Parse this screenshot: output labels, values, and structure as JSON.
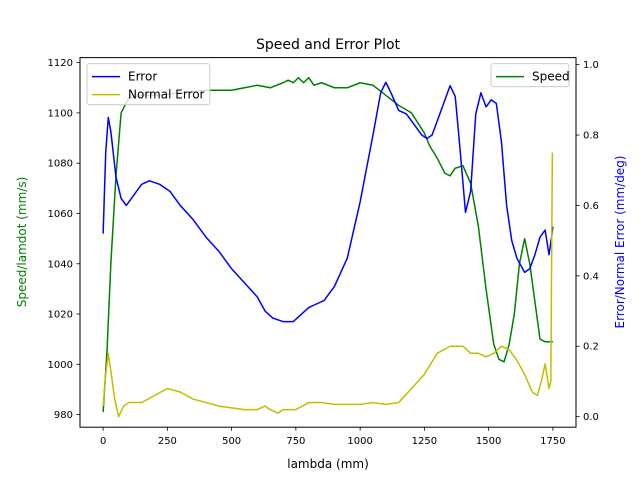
{
  "chart_data": {
    "type": "line",
    "title": "Speed and Error Plot",
    "xlabel": "lambda (mm)",
    "ylabel_left": "Speed/lamdot (mm/s)",
    "ylabel_right": "Error/Normal Error (mm/deg)",
    "xlim": [
      -90,
      1840
    ],
    "ylim_left": [
      975,
      1122
    ],
    "ylim_right": [
      -0.03,
      1.02
    ],
    "xticks": [
      0,
      250,
      500,
      750,
      1000,
      1250,
      1500,
      1750
    ],
    "yticks_left": [
      980,
      1000,
      1020,
      1040,
      1060,
      1080,
      1100,
      1120
    ],
    "yticks_right": [
      0.0,
      0.2,
      0.4,
      0.6,
      0.8,
      1.0
    ],
    "grid": false,
    "legend_left": {
      "placement": "top-left",
      "entries": [
        "Error",
        "Normal Error"
      ]
    },
    "legend_right": {
      "placement": "top-right",
      "entries": [
        "Speed"
      ]
    },
    "colors": {
      "speed": "#008000",
      "error": "#0000ff",
      "normal_error": "#bfbf00"
    },
    "series": [
      {
        "name": "Speed",
        "axis": "left",
        "color": "#008000",
        "x": [
          0,
          15,
          30,
          50,
          70,
          100,
          150,
          200,
          300,
          400,
          500,
          550,
          600,
          650,
          700,
          720,
          740,
          760,
          780,
          800,
          820,
          850,
          900,
          950,
          1000,
          1050,
          1100,
          1150,
          1200,
          1250,
          1270,
          1300,
          1330,
          1350,
          1370,
          1400,
          1430,
          1460,
          1490,
          1520,
          1540,
          1560,
          1580,
          1600,
          1620,
          1640,
          1660,
          1680,
          1700,
          1720,
          1740,
          1750
        ],
        "values": [
          981,
          1005,
          1040,
          1075,
          1100,
          1106,
          1107,
          1107,
          1108,
          1109,
          1109,
          1110,
          1111,
          1110,
          1112,
          1113,
          1112,
          1114,
          1112,
          1114,
          1111,
          1112,
          1110,
          1110,
          1112,
          1111,
          1107,
          1103,
          1100,
          1092,
          1087,
          1082,
          1076,
          1075,
          1078,
          1079,
          1072,
          1055,
          1030,
          1008,
          1002,
          1001,
          1008,
          1020,
          1040,
          1050,
          1040,
          1025,
          1010,
          1009,
          1009,
          1009
        ]
      },
      {
        "name": "Error",
        "axis": "right",
        "color": "#0000ff",
        "x": [
          0,
          10,
          20,
          30,
          50,
          70,
          90,
          110,
          130,
          150,
          180,
          220,
          260,
          300,
          350,
          400,
          450,
          500,
          550,
          600,
          630,
          660,
          700,
          740,
          770,
          800,
          830,
          860,
          900,
          950,
          1000,
          1050,
          1080,
          1100,
          1120,
          1150,
          1180,
          1210,
          1240,
          1260,
          1280,
          1300,
          1330,
          1350,
          1370,
          1390,
          1410,
          1430,
          1450,
          1470,
          1490,
          1510,
          1530,
          1550,
          1570,
          1590,
          1610,
          1640,
          1660,
          1680,
          1700,
          1720,
          1735,
          1745,
          1750
        ],
        "values": [
          0.52,
          0.75,
          0.85,
          0.81,
          0.68,
          0.62,
          0.6,
          0.62,
          0.64,
          0.66,
          0.67,
          0.66,
          0.64,
          0.6,
          0.56,
          0.51,
          0.47,
          0.42,
          0.38,
          0.34,
          0.3,
          0.28,
          0.27,
          0.27,
          0.29,
          0.31,
          0.32,
          0.33,
          0.37,
          0.45,
          0.61,
          0.8,
          0.92,
          0.95,
          0.92,
          0.87,
          0.86,
          0.83,
          0.8,
          0.79,
          0.8,
          0.84,
          0.9,
          0.94,
          0.91,
          0.75,
          0.58,
          0.64,
          0.86,
          0.92,
          0.88,
          0.9,
          0.89,
          0.78,
          0.6,
          0.5,
          0.45,
          0.41,
          0.42,
          0.46,
          0.51,
          0.53,
          0.46,
          0.51,
          0.54
        ]
      },
      {
        "name": "Normal Error",
        "axis": "right",
        "color": "#bfbf00",
        "x": [
          0,
          10,
          20,
          30,
          45,
          60,
          80,
          100,
          150,
          200,
          250,
          300,
          350,
          400,
          450,
          500,
          550,
          600,
          630,
          650,
          680,
          700,
          750,
          800,
          850,
          900,
          950,
          1000,
          1050,
          1100,
          1150,
          1200,
          1250,
          1300,
          1350,
          1400,
          1430,
          1460,
          1490,
          1520,
          1550,
          1580,
          1610,
          1640,
          1670,
          1690,
          1705,
          1720,
          1735,
          1742,
          1748
        ],
        "values": [
          0.03,
          0.12,
          0.18,
          0.13,
          0.05,
          0.0,
          0.03,
          0.04,
          0.04,
          0.06,
          0.08,
          0.07,
          0.05,
          0.04,
          0.03,
          0.025,
          0.02,
          0.02,
          0.03,
          0.02,
          0.01,
          0.02,
          0.02,
          0.04,
          0.04,
          0.035,
          0.035,
          0.035,
          0.04,
          0.035,
          0.04,
          0.08,
          0.12,
          0.18,
          0.2,
          0.2,
          0.18,
          0.18,
          0.17,
          0.18,
          0.2,
          0.19,
          0.16,
          0.12,
          0.07,
          0.06,
          0.1,
          0.15,
          0.08,
          0.1,
          0.75
        ]
      }
    ]
  }
}
